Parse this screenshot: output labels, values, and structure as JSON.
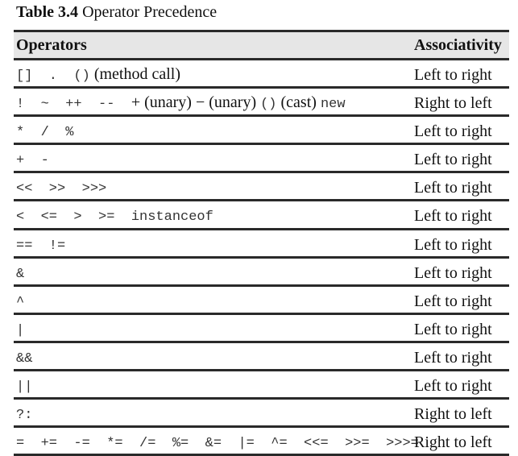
{
  "caption": {
    "label": "Table 3.4",
    "title": "Operator Precedence"
  },
  "table": {
    "headers": {
      "operators": "Operators",
      "associativity": "Associativity"
    },
    "rows": [
      {
        "parts": [
          {
            "t": "[]  .  ()",
            "f": "mono"
          },
          {
            "t": " (method call)",
            "f": "serif"
          }
        ],
        "assoc": "Left to right"
      },
      {
        "parts": [
          {
            "t": "!  ~  ++  --  ",
            "f": "mono"
          },
          {
            "t": "+ (unary) − (unary) ",
            "f": "serif"
          },
          {
            "t": "()",
            "f": "mono"
          },
          {
            "t": " (cast) ",
            "f": "serif"
          },
          {
            "t": "new",
            "f": "mono"
          }
        ],
        "assoc": "Right to left"
      },
      {
        "parts": [
          {
            "t": "*  /  %",
            "f": "mono"
          }
        ],
        "assoc": "Left to right"
      },
      {
        "parts": [
          {
            "t": "+  -",
            "f": "mono"
          }
        ],
        "assoc": "Left to right"
      },
      {
        "parts": [
          {
            "t": "<<  >>  >>>",
            "f": "mono"
          }
        ],
        "assoc": "Left to right"
      },
      {
        "parts": [
          {
            "t": "<  <=  >  >=  instanceof",
            "f": "mono"
          }
        ],
        "assoc": "Left to right"
      },
      {
        "parts": [
          {
            "t": "==  !=",
            "f": "mono"
          }
        ],
        "assoc": "Left to right"
      },
      {
        "parts": [
          {
            "t": "&",
            "f": "mono"
          }
        ],
        "assoc": "Left to right"
      },
      {
        "parts": [
          {
            "t": "^",
            "f": "mono"
          }
        ],
        "assoc": "Left to right"
      },
      {
        "parts": [
          {
            "t": "|",
            "f": "mono"
          }
        ],
        "assoc": "Left to right"
      },
      {
        "parts": [
          {
            "t": "&&",
            "f": "mono"
          }
        ],
        "assoc": "Left to right"
      },
      {
        "parts": [
          {
            "t": "||",
            "f": "mono"
          }
        ],
        "assoc": "Left to right"
      },
      {
        "parts": [
          {
            "t": "?:",
            "f": "mono"
          }
        ],
        "assoc": "Right to left"
      },
      {
        "parts": [
          {
            "t": "=  +=  -=  *=  /=  %=  &=  |=  ^=  <<=  >>=  >>>=",
            "f": "mono"
          }
        ],
        "assoc": "Right to left"
      }
    ]
  }
}
